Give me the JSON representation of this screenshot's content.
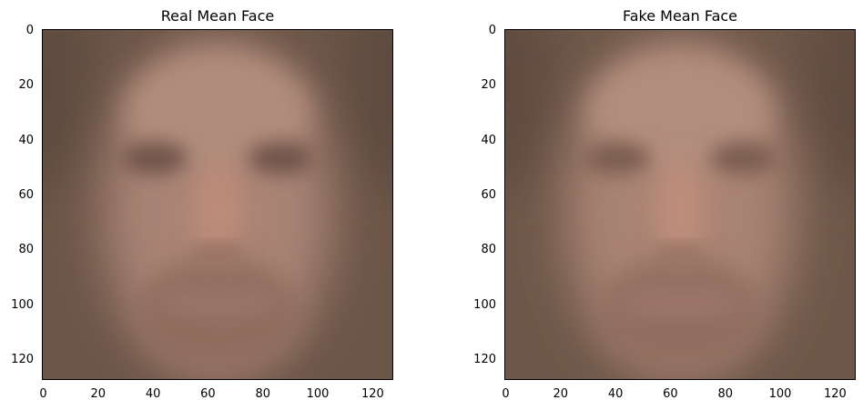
{
  "panels": [
    {
      "title": "Real Mean Face",
      "palette": {
        "background": "#6c5648",
        "edge_dark": "#5f4b3f",
        "face": "#a98374",
        "forehead": "#b18c7c",
        "nose": "#bd8c79",
        "eyes": "#6f5448",
        "mouth": "#9a7369",
        "chin": "#8f6c5d"
      }
    },
    {
      "title": "Fake Mean Face",
      "palette": {
        "background": "#6e5849",
        "edge_dark": "#604c40",
        "face": "#a98373",
        "forehead": "#b28d7e",
        "nose": "#bf8e7b",
        "eyes": "#7a5d50",
        "mouth": "#9c756b",
        "chin": "#906d5e"
      }
    }
  ],
  "axes": {
    "x_ticks": [
      "0",
      "20",
      "40",
      "60",
      "80",
      "100",
      "120"
    ],
    "y_ticks": [
      "0",
      "20",
      "40",
      "60",
      "80",
      "100",
      "120"
    ],
    "x_range": [
      -0.5,
      127.5
    ],
    "y_range": [
      -0.5,
      127.5
    ],
    "y_inverted": true
  }
}
